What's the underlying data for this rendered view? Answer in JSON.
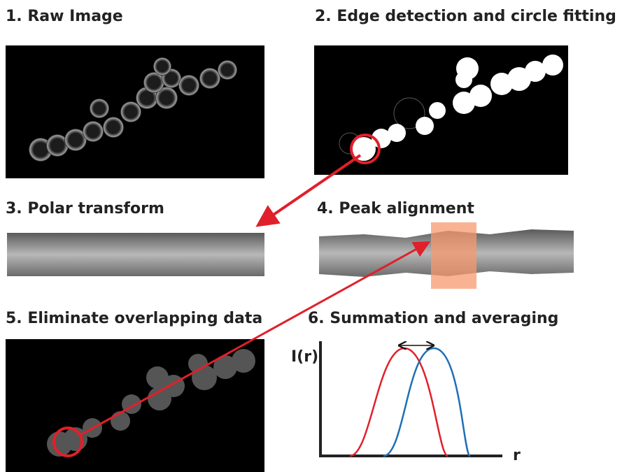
{
  "panels": [
    {
      "title": "1. Raw Image"
    },
    {
      "title": "2. Edge detection and circle fitting"
    },
    {
      "title": "3. Polar transform"
    },
    {
      "title": "4. Peak alignment"
    },
    {
      "title": "5. Eliminate overlapping data"
    },
    {
      "title": "6. Summation and averaging"
    }
  ],
  "plot": {
    "y_label": "I(r)",
    "x_label": "r"
  }
}
